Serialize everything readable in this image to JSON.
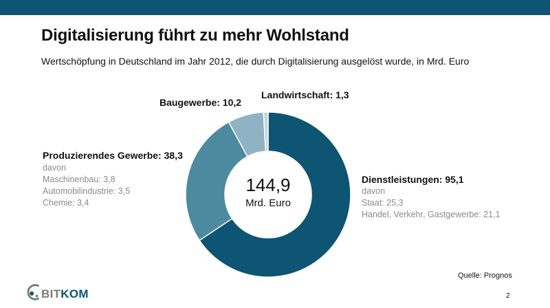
{
  "title": "Digitalisierung führt zu mehr Wohlstand",
  "subtitle": "Wertschöpfung in Deutschland im Jahr 2012, die durch Digitalisierung ausgelöst wurde, in Mrd. Euro",
  "chart_data": {
    "type": "pie",
    "style": "donut",
    "total": "144,9",
    "total_unit": "Mrd. Euro",
    "slices": [
      {
        "label": "Dienstleistungen: 95,1",
        "value": 95.1,
        "color": "#0d5572",
        "details": [
          "davon",
          "Staat: 25,3",
          "Handel, Verkehr, Gastgewerbe: 21,1"
        ]
      },
      {
        "label": "Produzierendes Gewerbe: 38,3",
        "value": 38.3,
        "color": "#4d8aa0",
        "details": [
          "davon",
          "Maschinenbau: 3,8",
          "Automobilindustrie: 3,5",
          "Chemie: 3,4"
        ]
      },
      {
        "label": "Baugewerbe: 10,2",
        "value": 10.2,
        "color": "#8fb3c3",
        "details": []
      },
      {
        "label": "Landwirtschaft: 1,3",
        "value": 1.3,
        "color": "#c3d6de",
        "details": []
      }
    ]
  },
  "source": "Quelle: Prognos",
  "logo": {
    "part1": "BIT",
    "part2": "KOM",
    "color1": "#7a7a7a",
    "color2": "#0d5572"
  },
  "page_number": "2"
}
